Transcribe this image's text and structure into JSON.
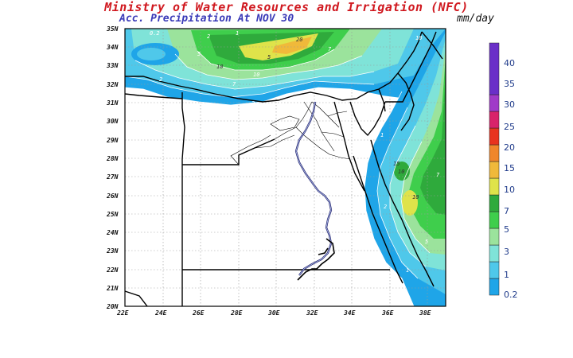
{
  "title": "Ministry of Water Resources and Irrigation (NFC)",
  "subtitle": "Acc. Precipitation  At NOV 30",
  "units": "mm/day",
  "lon_labels": [
    "22E",
    "24E",
    "26E",
    "28E",
    "30E",
    "32E",
    "34E",
    "36E",
    "38E"
  ],
  "lat_labels": [
    "20N",
    "21N",
    "22N",
    "23N",
    "24N",
    "25N",
    "26N",
    "27N",
    "28N",
    "29N",
    "30N",
    "31N",
    "32N",
    "33N",
    "34N",
    "35N"
  ],
  "legend": {
    "levels": [
      "0.2",
      "1",
      "3",
      "5",
      "7",
      "10",
      "15",
      "20",
      "25",
      "30",
      "35",
      "40"
    ],
    "colors": [
      "#1fa5e8",
      "#4fc8ea",
      "#7fe3d8",
      "#9be39c",
      "#3fce4c",
      "#2faa3c",
      "#dfe34a",
      "#f0b93a",
      "#f0862b",
      "#e8331f",
      "#d8236a",
      "#a03ac8",
      "#6a2fc8"
    ]
  },
  "contour_labels": [
    "0.2",
    "2",
    "1",
    "5",
    "10",
    "20",
    "5",
    "7",
    "7",
    "10",
    "2",
    "10",
    "1",
    "2",
    "1",
    "10",
    "15",
    "7",
    "10",
    "2",
    "5",
    "1"
  ]
}
